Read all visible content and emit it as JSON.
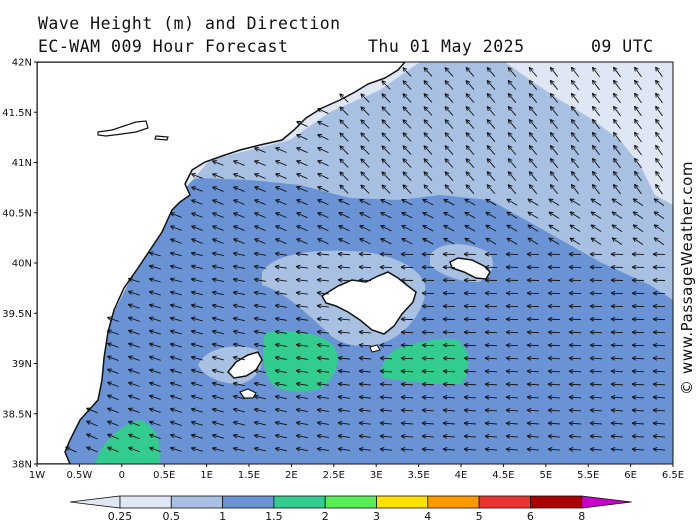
{
  "title": "Wave Height (m) and Direction",
  "subtitle_model": "EC-WAM 009 Hour Forecast",
  "subtitle_date": "Thu 01 May 2025",
  "subtitle_time": "09 UTC",
  "credit": "© www.PassageWeather.com",
  "axes": {
    "lat_ticks": [
      "42N",
      "41.5N",
      "41N",
      "40.5N",
      "40N",
      "39.5N",
      "39N",
      "38.5N",
      "38N"
    ],
    "lon_ticks": [
      "1W",
      "0.5W",
      "0",
      "0.5E",
      "1E",
      "1.5E",
      "2E",
      "2.5E",
      "3E",
      "3.5E",
      "4E",
      "4.5E",
      "5E",
      "5.5E",
      "6E",
      "6.5E"
    ]
  },
  "colorbar": {
    "labels": [
      "0.25",
      "0.5",
      "1",
      "1.5",
      "2",
      "3",
      "4",
      "5",
      "6",
      "8"
    ],
    "colors": [
      "#dfe7f4",
      "#a8c0e2",
      "#6a93d6",
      "#33cc8f",
      "#55ee55",
      "#ffe100",
      "#ff9900",
      "#ee3333",
      "#aa0000",
      "#cc00cc"
    ]
  },
  "colors": {
    "land": "#ffffff",
    "sea_0_25_0_5": "#dfe7f4",
    "sea_0_5_1": "#a8c0e2",
    "sea_1_1_5": "#6a93d6",
    "sea_1_5_2": "#33cc8f",
    "arrows": "#111111"
  }
}
